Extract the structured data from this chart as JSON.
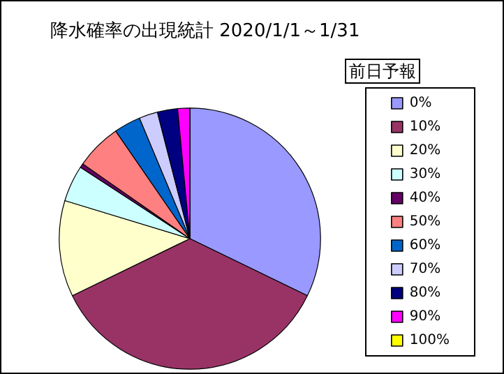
{
  "chart_data": {
    "type": "pie",
    "title": "降水確率の出現統計 2020/1/1～1/31",
    "legend_title": "前日予報",
    "categories": [
      "0%",
      "10%",
      "20%",
      "30%",
      "40%",
      "50%",
      "60%",
      "70%",
      "80%",
      "90%",
      "100%"
    ],
    "values": [
      32.2,
      35.6,
      11.9,
      4.5,
      0.5,
      5.7,
      3.3,
      2.3,
      2.5,
      1.5,
      0
    ],
    "colors": [
      "#9999ff",
      "#993366",
      "#ffffcc",
      "#ccffff",
      "#660066",
      "#ff8080",
      "#0066cc",
      "#ccccff",
      "#000080",
      "#ff00ff",
      "#ffff00"
    ],
    "legend": "right"
  }
}
